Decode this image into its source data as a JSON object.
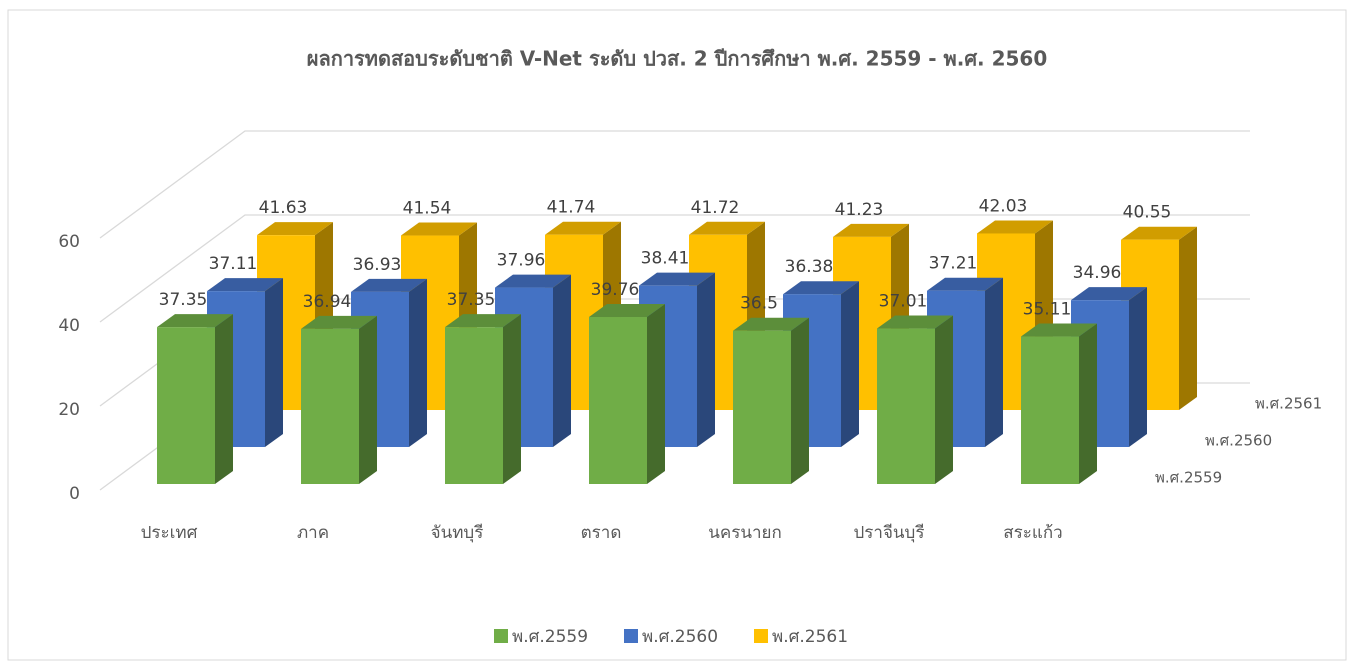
{
  "chart_data": {
    "type": "bar3d",
    "title": "ผลการทดสอบระดับชาติ V-Net ระดับ ปวส. 2 ปีการศึกษา พ.ศ. 2559 - พ.ศ. 2560",
    "categories": [
      "ประเทศ",
      "ภาค",
      "จันทบุรี",
      "ตราด",
      "นครนายก",
      "ปราจีนบุรี",
      "สระแก้ว"
    ],
    "series": [
      {
        "name": "พ.ศ.2559",
        "color": "#70ad47",
        "values": [
          37.35,
          36.94,
          37.35,
          39.76,
          36.5,
          37.01,
          35.11
        ]
      },
      {
        "name": "พ.ศ.2560",
        "color": "#4472c4",
        "values": [
          37.11,
          36.93,
          37.96,
          38.41,
          36.38,
          37.21,
          34.96
        ]
      },
      {
        "name": "พ.ศ.2561",
        "color": "#ffc000",
        "values": [
          41.63,
          41.54,
          41.74,
          41.72,
          41.23,
          42.03,
          40.55
        ]
      }
    ],
    "ylim": [
      0,
      60
    ],
    "yticks": [
      0,
      20,
      40,
      60
    ],
    "grid": true,
    "legend": "bottom"
  }
}
